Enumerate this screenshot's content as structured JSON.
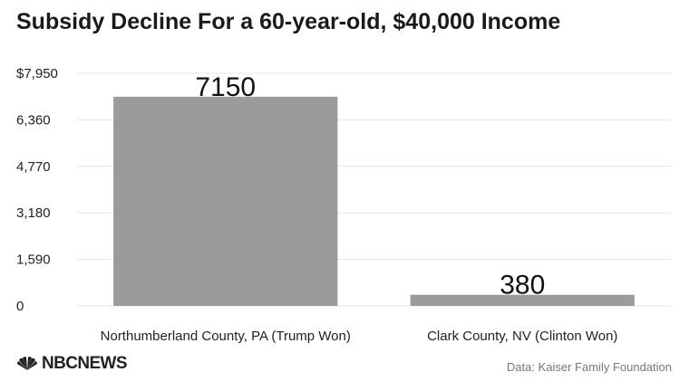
{
  "title": "Subsidy Decline For a 60-year-old, $40,000 Income",
  "source": "Data: Kaiser Family Foundation",
  "logo": {
    "text": "NBCNEWS",
    "icon": "nbc-peacock-icon"
  },
  "colors": {
    "bar": "#9b9b9b",
    "grid": "#e6e6e6",
    "text": "#222222",
    "muted": "#777777"
  },
  "chart_data": {
    "type": "bar",
    "categories": [
      "Northumberland County, PA (Trump Won)",
      "Clark County, NV (Clinton Won)"
    ],
    "values": [
      7150,
      380
    ],
    "data_labels": [
      "7150",
      "380"
    ],
    "ylim": [
      0,
      7950
    ],
    "yticks": [
      0,
      1590,
      3180,
      4770,
      6360,
      7950
    ],
    "ytick_labels": [
      "0",
      "1,590",
      "3,180",
      "4,770",
      "6,360",
      "$7,950"
    ],
    "grid": true
  }
}
